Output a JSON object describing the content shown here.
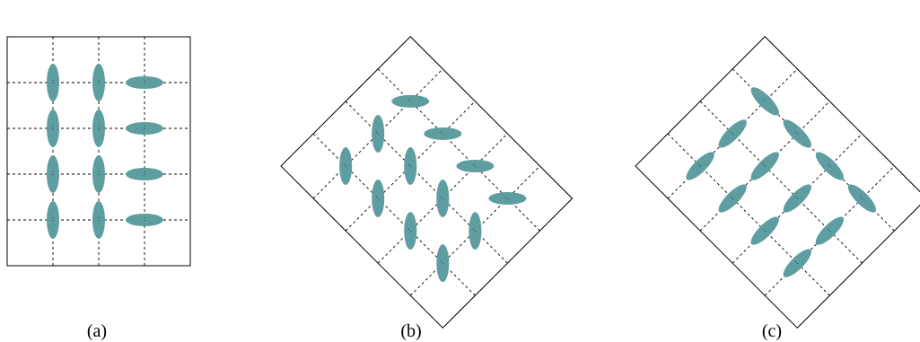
{
  "colors": {
    "ellipse_fill": "#5f9ea0",
    "frame": "#000000",
    "grid_line": "#000000"
  },
  "panels": [
    {
      "id": "a",
      "caption": "(a)",
      "description_kind": "upright lattice",
      "grid": {
        "columns": 4,
        "rows": 5
      },
      "ellipses": [
        {
          "col": 1,
          "row": 1,
          "orientation": "vertical"
        },
        {
          "col": 1,
          "row": 2,
          "orientation": "vertical"
        },
        {
          "col": 1,
          "row": 3,
          "orientation": "vertical"
        },
        {
          "col": 1,
          "row": 4,
          "orientation": "vertical"
        },
        {
          "col": 2,
          "row": 1,
          "orientation": "vertical"
        },
        {
          "col": 2,
          "row": 2,
          "orientation": "vertical"
        },
        {
          "col": 2,
          "row": 3,
          "orientation": "vertical"
        },
        {
          "col": 2,
          "row": 4,
          "orientation": "vertical"
        },
        {
          "col": 3,
          "row": 1,
          "orientation": "horizontal"
        },
        {
          "col": 3,
          "row": 2,
          "orientation": "horizontal"
        },
        {
          "col": 3,
          "row": 3,
          "orientation": "horizontal"
        },
        {
          "col": 3,
          "row": 4,
          "orientation": "horizontal"
        }
      ]
    },
    {
      "id": "b",
      "caption": "(b)",
      "description_kind": "rotated lattice, ellipses keep global orientation",
      "grid": {
        "columns": 4,
        "rows": 5
      },
      "ellipses": [
        {
          "col": 1,
          "row": 1,
          "orientation": "vertical"
        },
        {
          "col": 1,
          "row": 2,
          "orientation": "vertical"
        },
        {
          "col": 1,
          "row": 3,
          "orientation": "vertical"
        },
        {
          "col": 1,
          "row": 4,
          "orientation": "vertical"
        },
        {
          "col": 2,
          "row": 1,
          "orientation": "vertical"
        },
        {
          "col": 2,
          "row": 2,
          "orientation": "vertical"
        },
        {
          "col": 2,
          "row": 3,
          "orientation": "vertical"
        },
        {
          "col": 2,
          "row": 4,
          "orientation": "vertical"
        },
        {
          "col": 3,
          "row": 1,
          "orientation": "horizontal"
        },
        {
          "col": 3,
          "row": 2,
          "orientation": "horizontal"
        },
        {
          "col": 3,
          "row": 3,
          "orientation": "horizontal"
        },
        {
          "col": 3,
          "row": 4,
          "orientation": "horizontal"
        }
      ]
    },
    {
      "id": "c",
      "caption": "(c)",
      "description_kind": "rotated lattice, ellipses rotate with lattice",
      "grid": {
        "columns": 4,
        "rows": 5
      },
      "ellipses": [
        {
          "col": 1,
          "row": 1,
          "orientation": "vertical"
        },
        {
          "col": 1,
          "row": 2,
          "orientation": "vertical"
        },
        {
          "col": 1,
          "row": 3,
          "orientation": "vertical"
        },
        {
          "col": 1,
          "row": 4,
          "orientation": "vertical"
        },
        {
          "col": 2,
          "row": 1,
          "orientation": "vertical"
        },
        {
          "col": 2,
          "row": 2,
          "orientation": "vertical"
        },
        {
          "col": 2,
          "row": 3,
          "orientation": "vertical"
        },
        {
          "col": 2,
          "row": 4,
          "orientation": "vertical"
        },
        {
          "col": 3,
          "row": 1,
          "orientation": "horizontal"
        },
        {
          "col": 3,
          "row": 2,
          "orientation": "horizontal"
        },
        {
          "col": 3,
          "row": 3,
          "orientation": "horizontal"
        },
        {
          "col": 3,
          "row": 4,
          "orientation": "horizontal"
        }
      ]
    }
  ]
}
